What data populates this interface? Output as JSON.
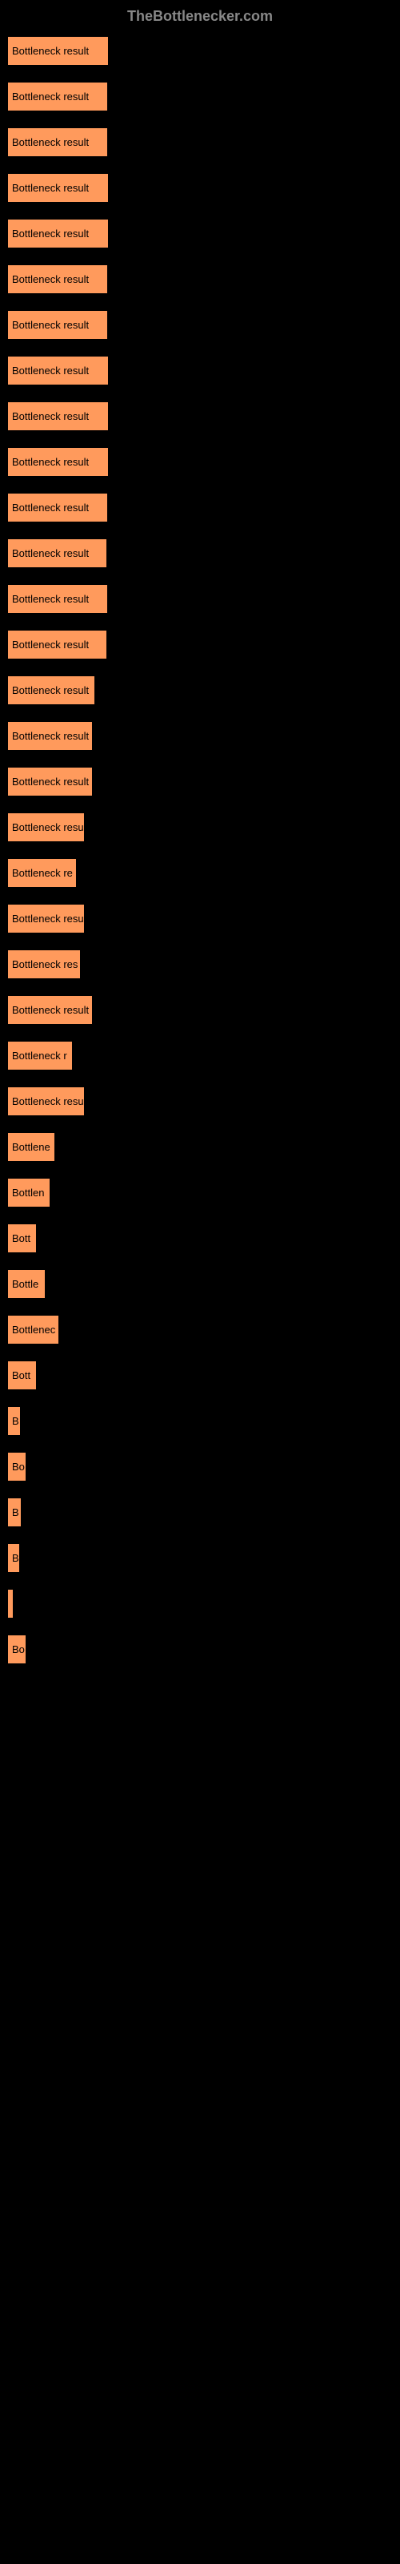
{
  "header": "TheBottlenecker.com",
  "chart": {
    "type": "bar",
    "orientation": "horizontal",
    "background_color": "#000000",
    "bar_color": "#ff9a5c",
    "text_color": "#000000",
    "header_color": "#888888",
    "max_width": 125,
    "bars": [
      {
        "label": "Bottleneck result",
        "width": 125
      },
      {
        "label": "Bottleneck result",
        "width": 124
      },
      {
        "label": "Bottleneck result",
        "width": 124
      },
      {
        "label": "Bottleneck result",
        "width": 125
      },
      {
        "label": "Bottleneck result",
        "width": 125
      },
      {
        "label": "Bottleneck result",
        "width": 124
      },
      {
        "label": "Bottleneck result",
        "width": 124
      },
      {
        "label": "Bottleneck result",
        "width": 125
      },
      {
        "label": "Bottleneck result",
        "width": 125
      },
      {
        "label": "Bottleneck result",
        "width": 125
      },
      {
        "label": "Bottleneck result",
        "width": 124
      },
      {
        "label": "Bottleneck result",
        "width": 123
      },
      {
        "label": "Bottleneck result",
        "width": 124
      },
      {
        "label": "Bottleneck result",
        "width": 123
      },
      {
        "label": "Bottleneck result",
        "width": 108
      },
      {
        "label": "Bottleneck result",
        "width": 105
      },
      {
        "label": "Bottleneck result",
        "width": 105
      },
      {
        "label": "Bottleneck resu",
        "width": 95
      },
      {
        "label": "Bottleneck re",
        "width": 85
      },
      {
        "label": "Bottleneck resu",
        "width": 95
      },
      {
        "label": "Bottleneck res",
        "width": 90
      },
      {
        "label": "Bottleneck result",
        "width": 105
      },
      {
        "label": "Bottleneck r",
        "width": 80
      },
      {
        "label": "Bottleneck resu",
        "width": 95
      },
      {
        "label": "Bottlene",
        "width": 58
      },
      {
        "label": "Bottlen",
        "width": 52
      },
      {
        "label": "Bott",
        "width": 35
      },
      {
        "label": "Bottle",
        "width": 46
      },
      {
        "label": "Bottlenec",
        "width": 63
      },
      {
        "label": "Bott",
        "width": 35
      },
      {
        "label": "B",
        "width": 15
      },
      {
        "label": "Bo",
        "width": 22
      },
      {
        "label": "B",
        "width": 16
      },
      {
        "label": "B",
        "width": 14
      },
      {
        "label": "",
        "width": 6
      },
      {
        "label": "Bo",
        "width": 22
      }
    ]
  }
}
